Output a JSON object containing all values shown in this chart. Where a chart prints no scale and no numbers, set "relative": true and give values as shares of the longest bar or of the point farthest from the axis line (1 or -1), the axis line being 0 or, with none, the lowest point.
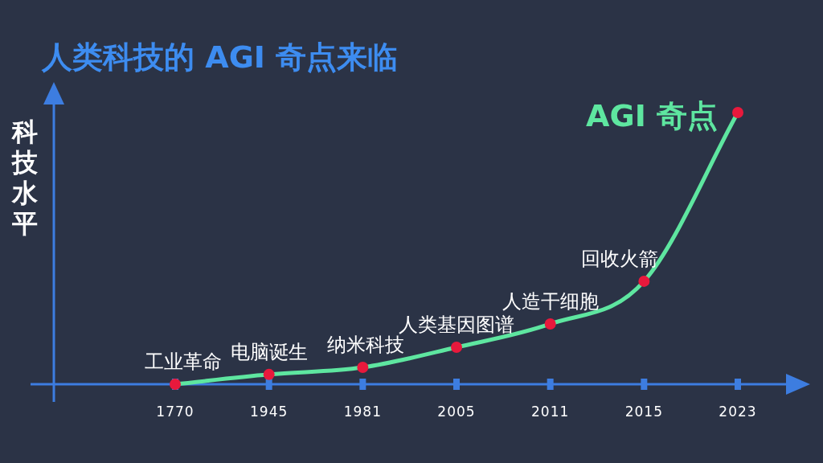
{
  "chart_data": {
    "type": "line",
    "title": "人类科技的 AGI 奇点来临",
    "ylabel": "科技水平",
    "relative": true,
    "marker": "circle",
    "line_style": "solid",
    "categories": [
      "1770",
      "1945",
      "1981",
      "2005",
      "2011",
      "2015",
      "2023"
    ],
    "series": [
      {
        "color": "#5ee6a0",
        "colors": [
          "#e8193c",
          "#e8193c",
          "#e8193c",
          "#e8193c",
          "#e8193c",
          "#e8193c",
          "#e8193c"
        ],
        "values": [
          0,
          0.036,
          0.062,
          0.136,
          0.222,
          0.379,
          1
        ]
      }
    ],
    "annotations": [
      {
        "text": "工业革命",
        "x": "1770",
        "y": 0
      },
      {
        "text": "电脑诞生",
        "x": "1945",
        "y": 0.036
      },
      {
        "text": "纳米科技",
        "x": "1981",
        "y": 0.062
      },
      {
        "text": "人类基因图谱",
        "x": "2005",
        "y": 0.136
      },
      {
        "text": "人造干细胞",
        "x": "2011",
        "y": 0.222
      },
      {
        "text": "回收火箭",
        "x": "2015",
        "y": 0.379
      },
      {
        "text": "AGI 奇点",
        "x": "2023",
        "y": 1
      }
    ]
  }
}
